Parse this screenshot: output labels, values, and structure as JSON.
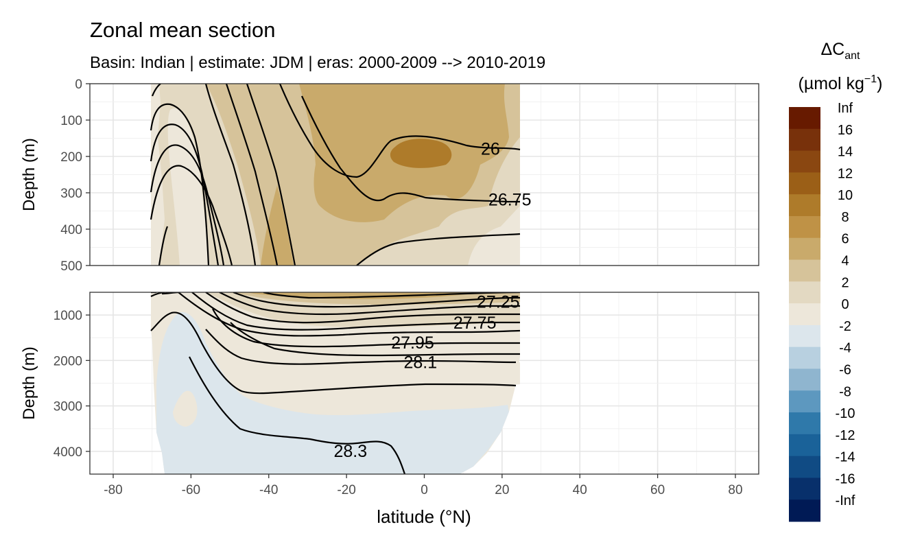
{
  "title": "Zonal mean section",
  "subtitle": "Basin: Indian | estimate: JDM  | eras: 2000-2009 --> 2010-2019",
  "legend": {
    "title_main": "ΔC",
    "title_sub": "ant",
    "unit_prefix": "(µmol kg",
    "unit_sup": "−1",
    "unit_suffix": ")",
    "breaks": [
      "Inf",
      "16",
      "14",
      "12",
      "10",
      "8",
      "6",
      "4",
      "2",
      "0",
      "-2",
      "-4",
      "-6",
      "-8",
      "-10",
      "-12",
      "-14",
      "-16",
      "-Inf"
    ],
    "colors": [
      "#671A00",
      "#78310B",
      "#8A4711",
      "#9B5F17",
      "#AE7B2A",
      "#BF9246",
      "#C9AA6B",
      "#D6C39A",
      "#E3D9C2",
      "#EDE7DA",
      "#DCE6EC",
      "#B8D0E0",
      "#8FB5CF",
      "#5D98BF",
      "#2F79AA",
      "#1A6299",
      "#104B84",
      "#08306B",
      "#001A55"
    ]
  },
  "chart_data": {
    "type": "contour",
    "x_label": "latitude (°N)",
    "x_ticks": [
      "-80",
      "-60",
      "-40",
      "-20",
      "0",
      "20",
      "40",
      "60",
      "80"
    ],
    "xlim": [
      -86,
      86
    ],
    "data_lat_range": [
      -69.5,
      24.5
    ],
    "panels": [
      {
        "name": "upper",
        "ylabel": "Depth (m)",
        "ylim": [
          0,
          500
        ],
        "y_ticks": [
          "0",
          "100",
          "200",
          "300",
          "400",
          "500"
        ],
        "isopycnals": [
          {
            "label": "26",
            "lat": 17,
            "depth": 180
          },
          {
            "label": "26.75",
            "lat": 22,
            "depth": 320
          }
        ]
      },
      {
        "name": "lower",
        "ylabel": "Depth (m)",
        "ylim": [
          500,
          4500
        ],
        "y_ticks": [
          "1000",
          "2000",
          "3000",
          "4000"
        ],
        "isopycnals": [
          {
            "label": "27.25",
            "lat": 19,
            "depth": 720
          },
          {
            "label": "27.75",
            "lat": 13,
            "depth": 1180
          },
          {
            "label": "27.95",
            "lat": -3,
            "depth": 1620
          },
          {
            "label": "28.1",
            "lat": -1,
            "depth": 2050
          },
          {
            "label": "28.3",
            "lat": -19,
            "depth": 4000
          }
        ]
      }
    ]
  }
}
